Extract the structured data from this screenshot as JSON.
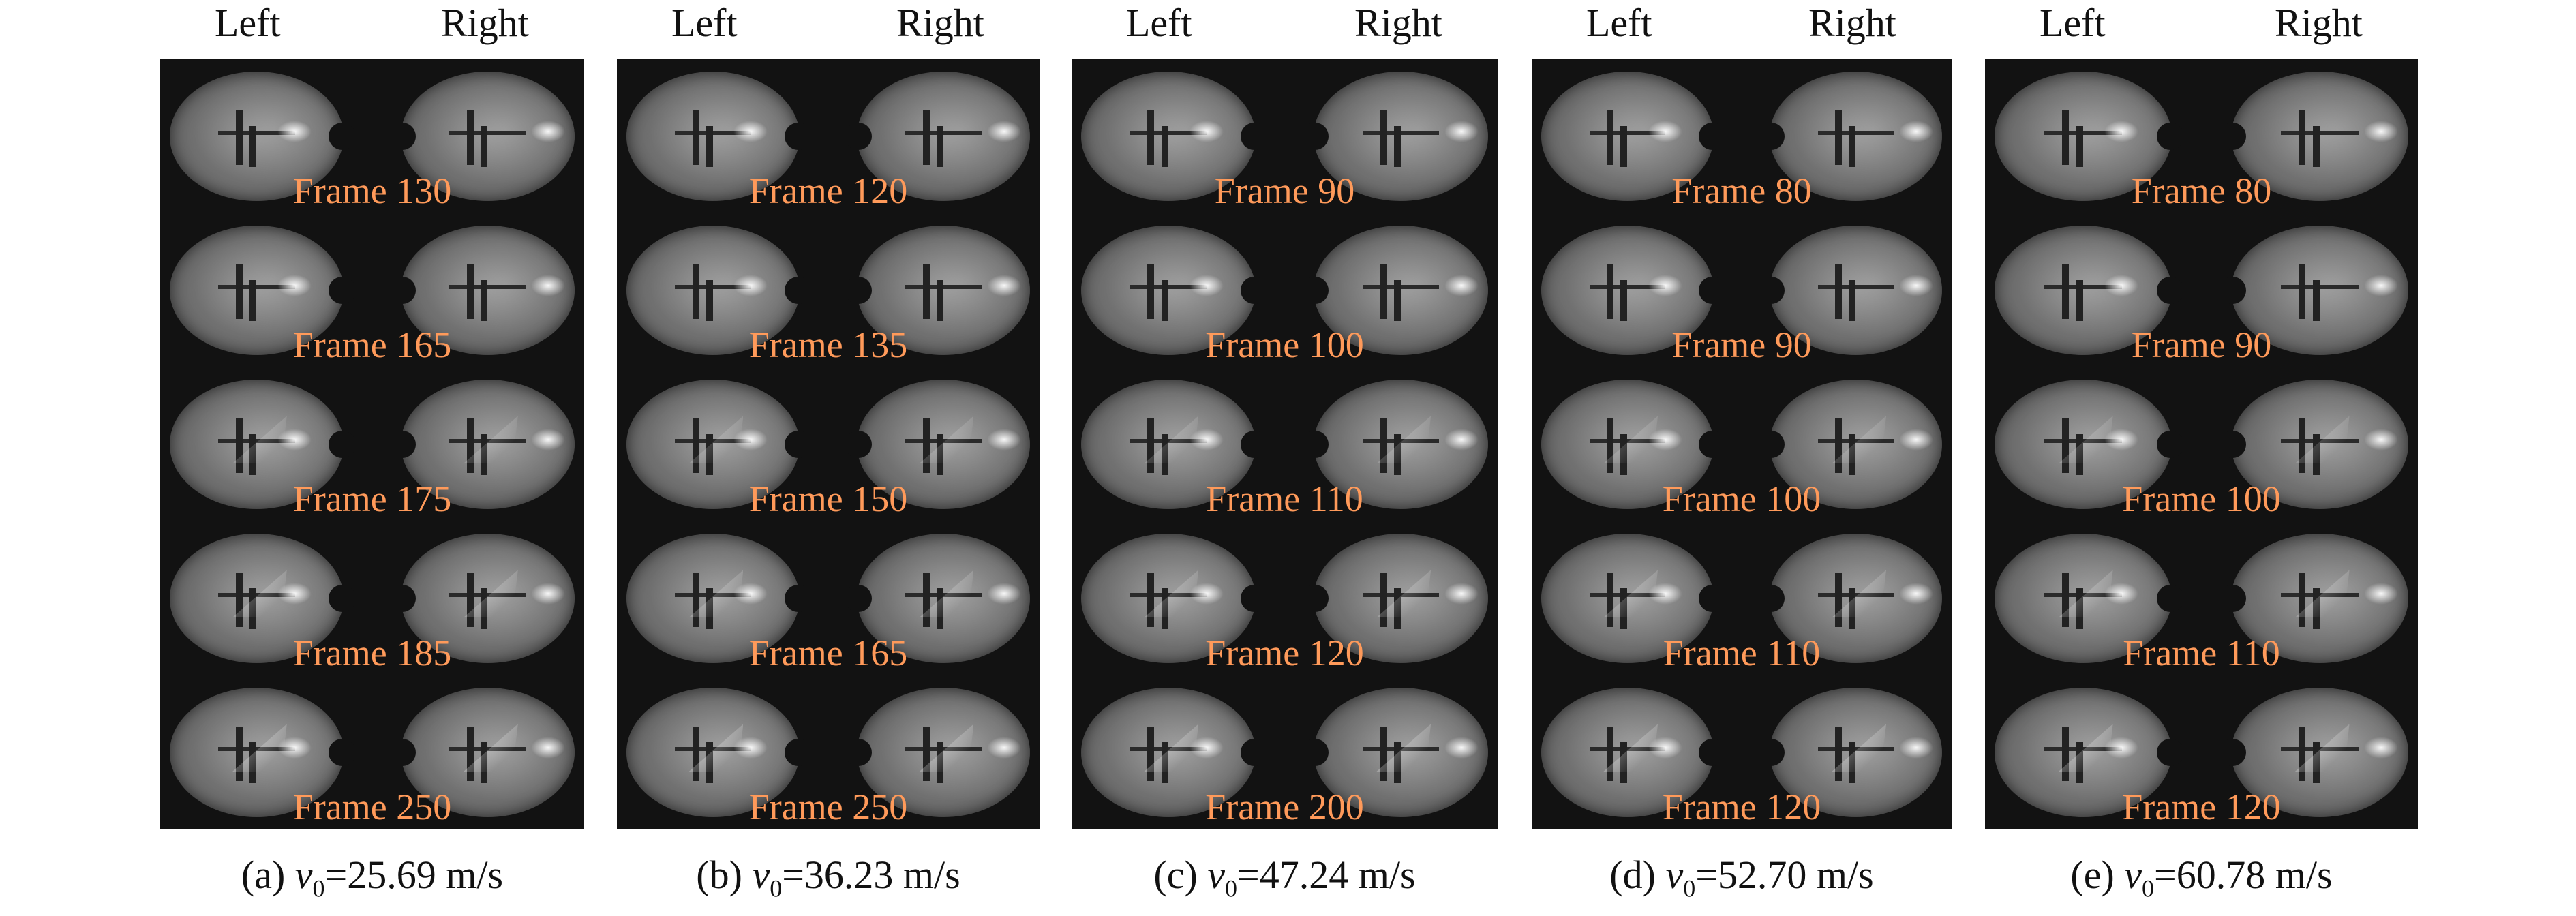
{
  "headers": {
    "left": "Left",
    "right": "Right"
  },
  "panels": [
    {
      "id": "a",
      "caption_prefix": "(a) ",
      "velocity_symbol": "v",
      "velocity_sub": "0",
      "velocity_value": "=25.69 m/s",
      "frames": [
        "Frame 130",
        "Frame 165",
        "Frame 175",
        "Frame 185",
        "Frame 250"
      ]
    },
    {
      "id": "b",
      "caption_prefix": "(b) ",
      "velocity_symbol": "v",
      "velocity_sub": "0",
      "velocity_value": "=36.23 m/s",
      "frames": [
        "Frame 120",
        "Frame 135",
        "Frame 150",
        "Frame 165",
        "Frame 250"
      ]
    },
    {
      "id": "c",
      "caption_prefix": "(c) ",
      "velocity_symbol": "v",
      "velocity_sub": "0",
      "velocity_value": "=47.24 m/s",
      "frames": [
        "Frame 90",
        "Frame 100",
        "Frame 110",
        "Frame 120",
        "Frame 200"
      ]
    },
    {
      "id": "d",
      "caption_prefix": "(d) ",
      "velocity_symbol": "v",
      "velocity_sub": "0",
      "velocity_value": "=52.70 m/s",
      "frames": [
        "Frame 80",
        "Frame 90",
        "Frame 100",
        "Frame 110",
        "Frame 120"
      ]
    },
    {
      "id": "e",
      "caption_prefix": "(e) ",
      "velocity_symbol": "v",
      "velocity_sub": "0",
      "velocity_value": "=60.78 m/s",
      "frames": [
        "Frame 80",
        "Frame 90",
        "Frame 100",
        "Frame 110",
        "Frame 120"
      ]
    }
  ],
  "colors": {
    "panel_bg": "#121212",
    "frame_label": "#ff9a5a",
    "text": "#111111"
  }
}
